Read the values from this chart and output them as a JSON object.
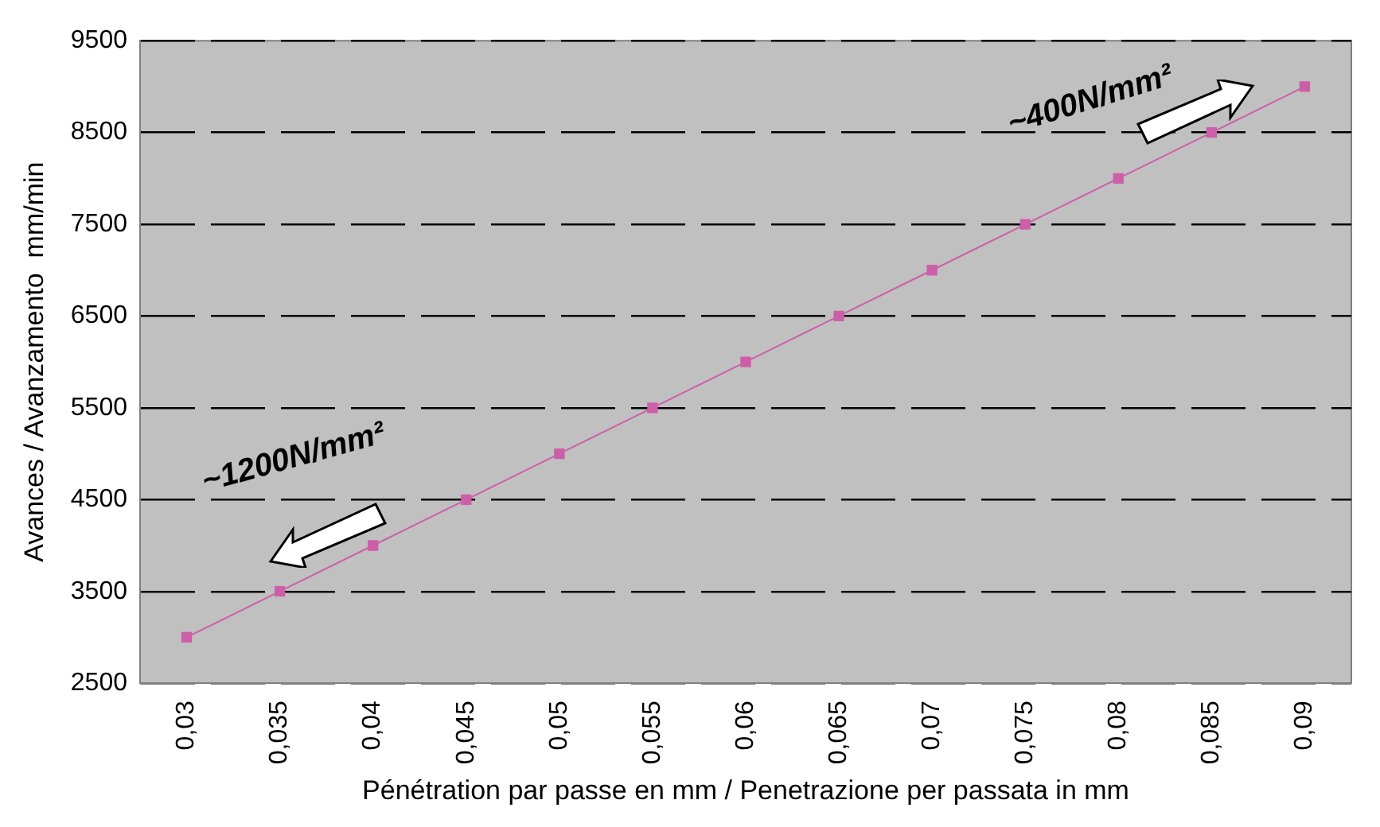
{
  "chart_data": {
    "type": "line",
    "xlabel": "Pénétration par passe en mm / Penetrazione per passata in mm",
    "ylabel": "Avances / Avanzamento  mm/min",
    "categories": [
      "0,03",
      "0,035",
      "0,04",
      "0,045",
      "0,05",
      "0,055",
      "0,06",
      "0,065",
      "0,07",
      "0,075",
      "0,08",
      "0,085",
      "0,09"
    ],
    "series": [
      {
        "color": "#cc5fa8",
        "values": [
          3000,
          3500,
          4000,
          4500,
          5000,
          5500,
          6000,
          6500,
          7000,
          7500,
          8000,
          8500,
          9000
        ]
      }
    ],
    "ylim": [
      2500,
      9500
    ],
    "yticks": [
      2500,
      3500,
      4500,
      5500,
      6500,
      7500,
      8500,
      9500
    ],
    "grid": "y",
    "legend": false,
    "marker": "square",
    "line_style": "solid",
    "annotations": [
      "~1200N/mm²",
      "~400N/mm²"
    ]
  }
}
